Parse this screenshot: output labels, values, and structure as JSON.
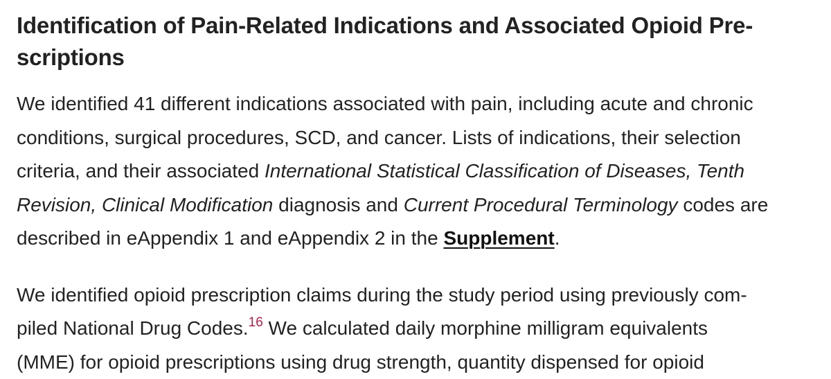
{
  "heading": {
    "line1": "Identification of Pain-Related Indications and Associated Opioid Pre-",
    "line2": "scriptions"
  },
  "paragraph1": {
    "line1": "We identified 41 different indications associated with pain, including acute and chronic",
    "line2": "conditions, surgical procedures, SCD, and cancer. Lists of indications, their selection",
    "line3_plain": "criteria, and their associated ",
    "line3_italic": "International Statistical Classification of Diseases, Tenth",
    "line4_italic_a": "Revision, Clinical Modification",
    "line4_plain_a": " diagnosis and ",
    "line4_italic_b": "Current Procedural Terminology",
    "line4_plain_b": " codes are",
    "line5_plain": "described in eAppendix 1 and eAppendix 2 in the ",
    "supplement_link": "Supplement",
    "line5_end": "."
  },
  "paragraph2": {
    "line1": "We identified opioid prescription claims during the study period using previously com-",
    "line2_plain": "piled National Drug Codes.",
    "reference": "16",
    "line2_rest": " We calculated daily morphine milligram equivalents",
    "line3_partial": "(MME) for opioid prescriptions using drug strength, quantity dispensed for opioid"
  }
}
